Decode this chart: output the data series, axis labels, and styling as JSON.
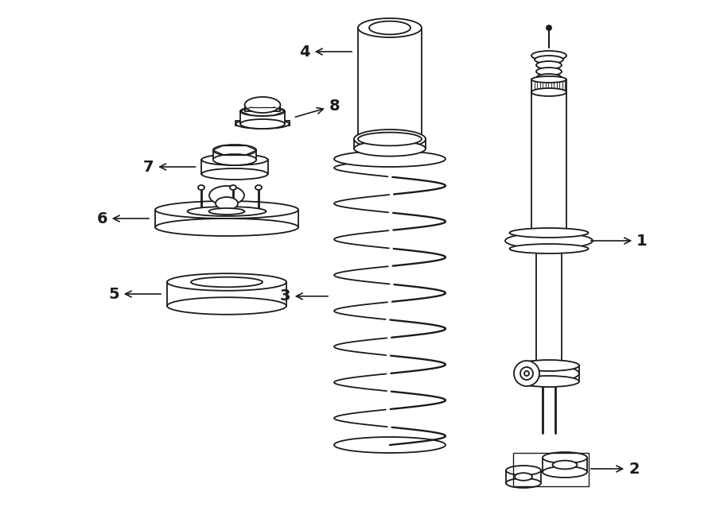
{
  "bg_color": "#ffffff",
  "lc": "#1a1a1a",
  "lw": 1.3,
  "fig_w": 9.0,
  "fig_h": 6.62,
  "dpi": 100
}
